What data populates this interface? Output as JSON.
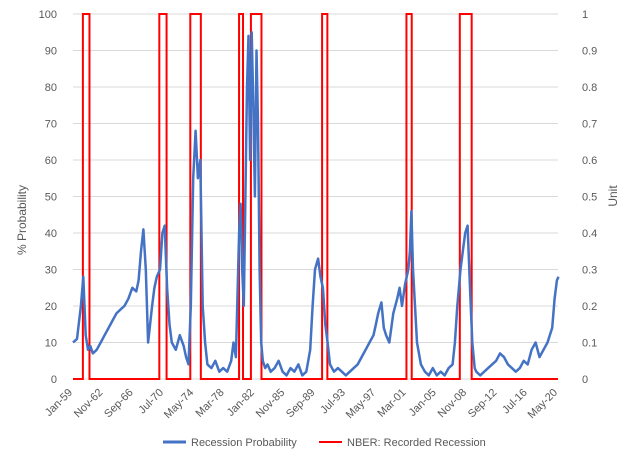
{
  "chart_data": {
    "type": "line",
    "title": "",
    "ylabel_left": "% Probability",
    "ylabel_right": "Unit",
    "x_ticks": [
      "Jan-59",
      "Nov-62",
      "Sep-66",
      "Jul-70",
      "May-74",
      "Mar-78",
      "Jan-82",
      "Nov-85",
      "Sep-89",
      "Jul-93",
      "May-97",
      "Mar-01",
      "Jan-05",
      "Nov-08",
      "Sep-12",
      "Jul-16",
      "May-20"
    ],
    "x_range": [
      "Jan-59",
      "May-20"
    ],
    "ylim_left": [
      0,
      100
    ],
    "ylim_right": [
      0,
      1
    ],
    "y_ticks_left": [
      "0",
      "10",
      "20",
      "30",
      "40",
      "50",
      "60",
      "70",
      "80",
      "90",
      "100"
    ],
    "y_ticks_right": [
      "0",
      "0.1",
      "0.2",
      "0.3",
      "0.4",
      "0.5",
      "0.6",
      "0.7",
      "0.8",
      "0.9",
      "1"
    ],
    "grid": "horizontal",
    "legend_position": "bottom",
    "series": [
      {
        "name": "Recession Probability",
        "axis": "left",
        "color": "#4472C4",
        "x": [
          1959.0,
          1959.5,
          1960.0,
          1960.3,
          1960.6,
          1960.9,
          1961.2,
          1961.5,
          1962.0,
          1962.5,
          1963.0,
          1963.5,
          1964.0,
          1964.5,
          1965.0,
          1965.5,
          1966.0,
          1966.5,
          1967.0,
          1967.3,
          1967.6,
          1967.9,
          1968.2,
          1968.5,
          1969.0,
          1969.3,
          1969.6,
          1970.0,
          1970.3,
          1970.6,
          1970.9,
          1971.2,
          1971.5,
          1972.0,
          1972.5,
          1973.0,
          1973.3,
          1973.6,
          1973.9,
          1974.2,
          1974.5,
          1974.8,
          1975.1,
          1975.4,
          1975.7,
          1976.0,
          1976.5,
          1977.0,
          1977.5,
          1978.0,
          1978.5,
          1979.0,
          1979.3,
          1979.6,
          1980.0,
          1980.2,
          1980.4,
          1980.6,
          1980.8,
          1981.0,
          1981.2,
          1981.4,
          1981.6,
          1981.8,
          1982.0,
          1982.2,
          1982.4,
          1982.6,
          1982.8,
          1983.0,
          1983.3,
          1983.6,
          1984.0,
          1984.5,
          1985.0,
          1985.5,
          1986.0,
          1986.5,
          1987.0,
          1987.5,
          1988.0,
          1988.5,
          1989.0,
          1989.3,
          1989.6,
          1990.0,
          1990.3,
          1990.6,
          1990.9,
          1991.2,
          1991.5,
          1992.0,
          1992.5,
          1993.0,
          1993.5,
          1994.0,
          1994.5,
          1995.0,
          1995.5,
          1996.0,
          1996.5,
          1997.0,
          1997.3,
          1997.6,
          1998.0,
          1998.3,
          1998.6,
          1999.0,
          1999.5,
          2000.0,
          2000.3,
          2000.6,
          2001.0,
          2001.2,
          2001.4,
          2001.6,
          2001.8,
          2002.0,
          2002.5,
          2003.0,
          2003.5,
          2004.0,
          2004.5,
          2005.0,
          2005.5,
          2006.0,
          2006.5,
          2007.0,
          2007.3,
          2007.6,
          2008.0,
          2008.3,
          2008.6,
          2008.9,
          2009.2,
          2009.5,
          2009.8,
          2010.0,
          2010.5,
          2011.0,
          2011.5,
          2012.0,
          2012.5,
          2013.0,
          2013.5,
          2014.0,
          2014.5,
          2015.0,
          2015.5,
          2016.0,
          2016.5,
          2017.0,
          2017.5,
          2018.0,
          2018.5,
          2019.0,
          2019.3,
          2019.6,
          2019.9,
          2020.2,
          2020.4
        ],
        "y": [
          10,
          11,
          20,
          28,
          12,
          8,
          9,
          7,
          8,
          10,
          12,
          14,
          16,
          18,
          19,
          20,
          22,
          25,
          24,
          27,
          35,
          41,
          30,
          10,
          20,
          25,
          28,
          30,
          40,
          42,
          25,
          15,
          10,
          8,
          12,
          9,
          6,
          4,
          20,
          55,
          68,
          55,
          60,
          20,
          10,
          4,
          3,
          5,
          2,
          3,
          2,
          5,
          10,
          6,
          40,
          48,
          30,
          20,
          50,
          80,
          94,
          60,
          95,
          75,
          50,
          90,
          70,
          30,
          10,
          5,
          3,
          4,
          2,
          3,
          5,
          2,
          1,
          3,
          2,
          4,
          1,
          2,
          8,
          20,
          30,
          33,
          28,
          25,
          15,
          10,
          4,
          2,
          3,
          2,
          1,
          2,
          3,
          4,
          6,
          8,
          10,
          12,
          15,
          18,
          21,
          14,
          12,
          10,
          18,
          22,
          25,
          20,
          26,
          28,
          30,
          35,
          46,
          30,
          10,
          4,
          2,
          1,
          3,
          1,
          2,
          1,
          3,
          4,
          10,
          20,
          30,
          35,
          40,
          42,
          25,
          10,
          3,
          2,
          1,
          2,
          3,
          4,
          5,
          7,
          6,
          4,
          3,
          2,
          3,
          5,
          4,
          8,
          10,
          6,
          8,
          10,
          12,
          14,
          22,
          27,
          28
        ]
      },
      {
        "name": "NBER: Recorded Recession",
        "axis": "right",
        "color": "#FF0000",
        "periods": [
          [
            "Apr-60",
            "Feb-61"
          ],
          [
            "Dec-69",
            "Nov-70"
          ],
          [
            "Nov-73",
            "Mar-75"
          ],
          [
            "Jan-80",
            "Jul-80"
          ],
          [
            "Jul-81",
            "Nov-82"
          ],
          [
            "Jul-90",
            "Mar-91"
          ],
          [
            "Mar-01",
            "Nov-01"
          ],
          [
            "Dec-07",
            "Jun-09"
          ]
        ]
      }
    ]
  }
}
